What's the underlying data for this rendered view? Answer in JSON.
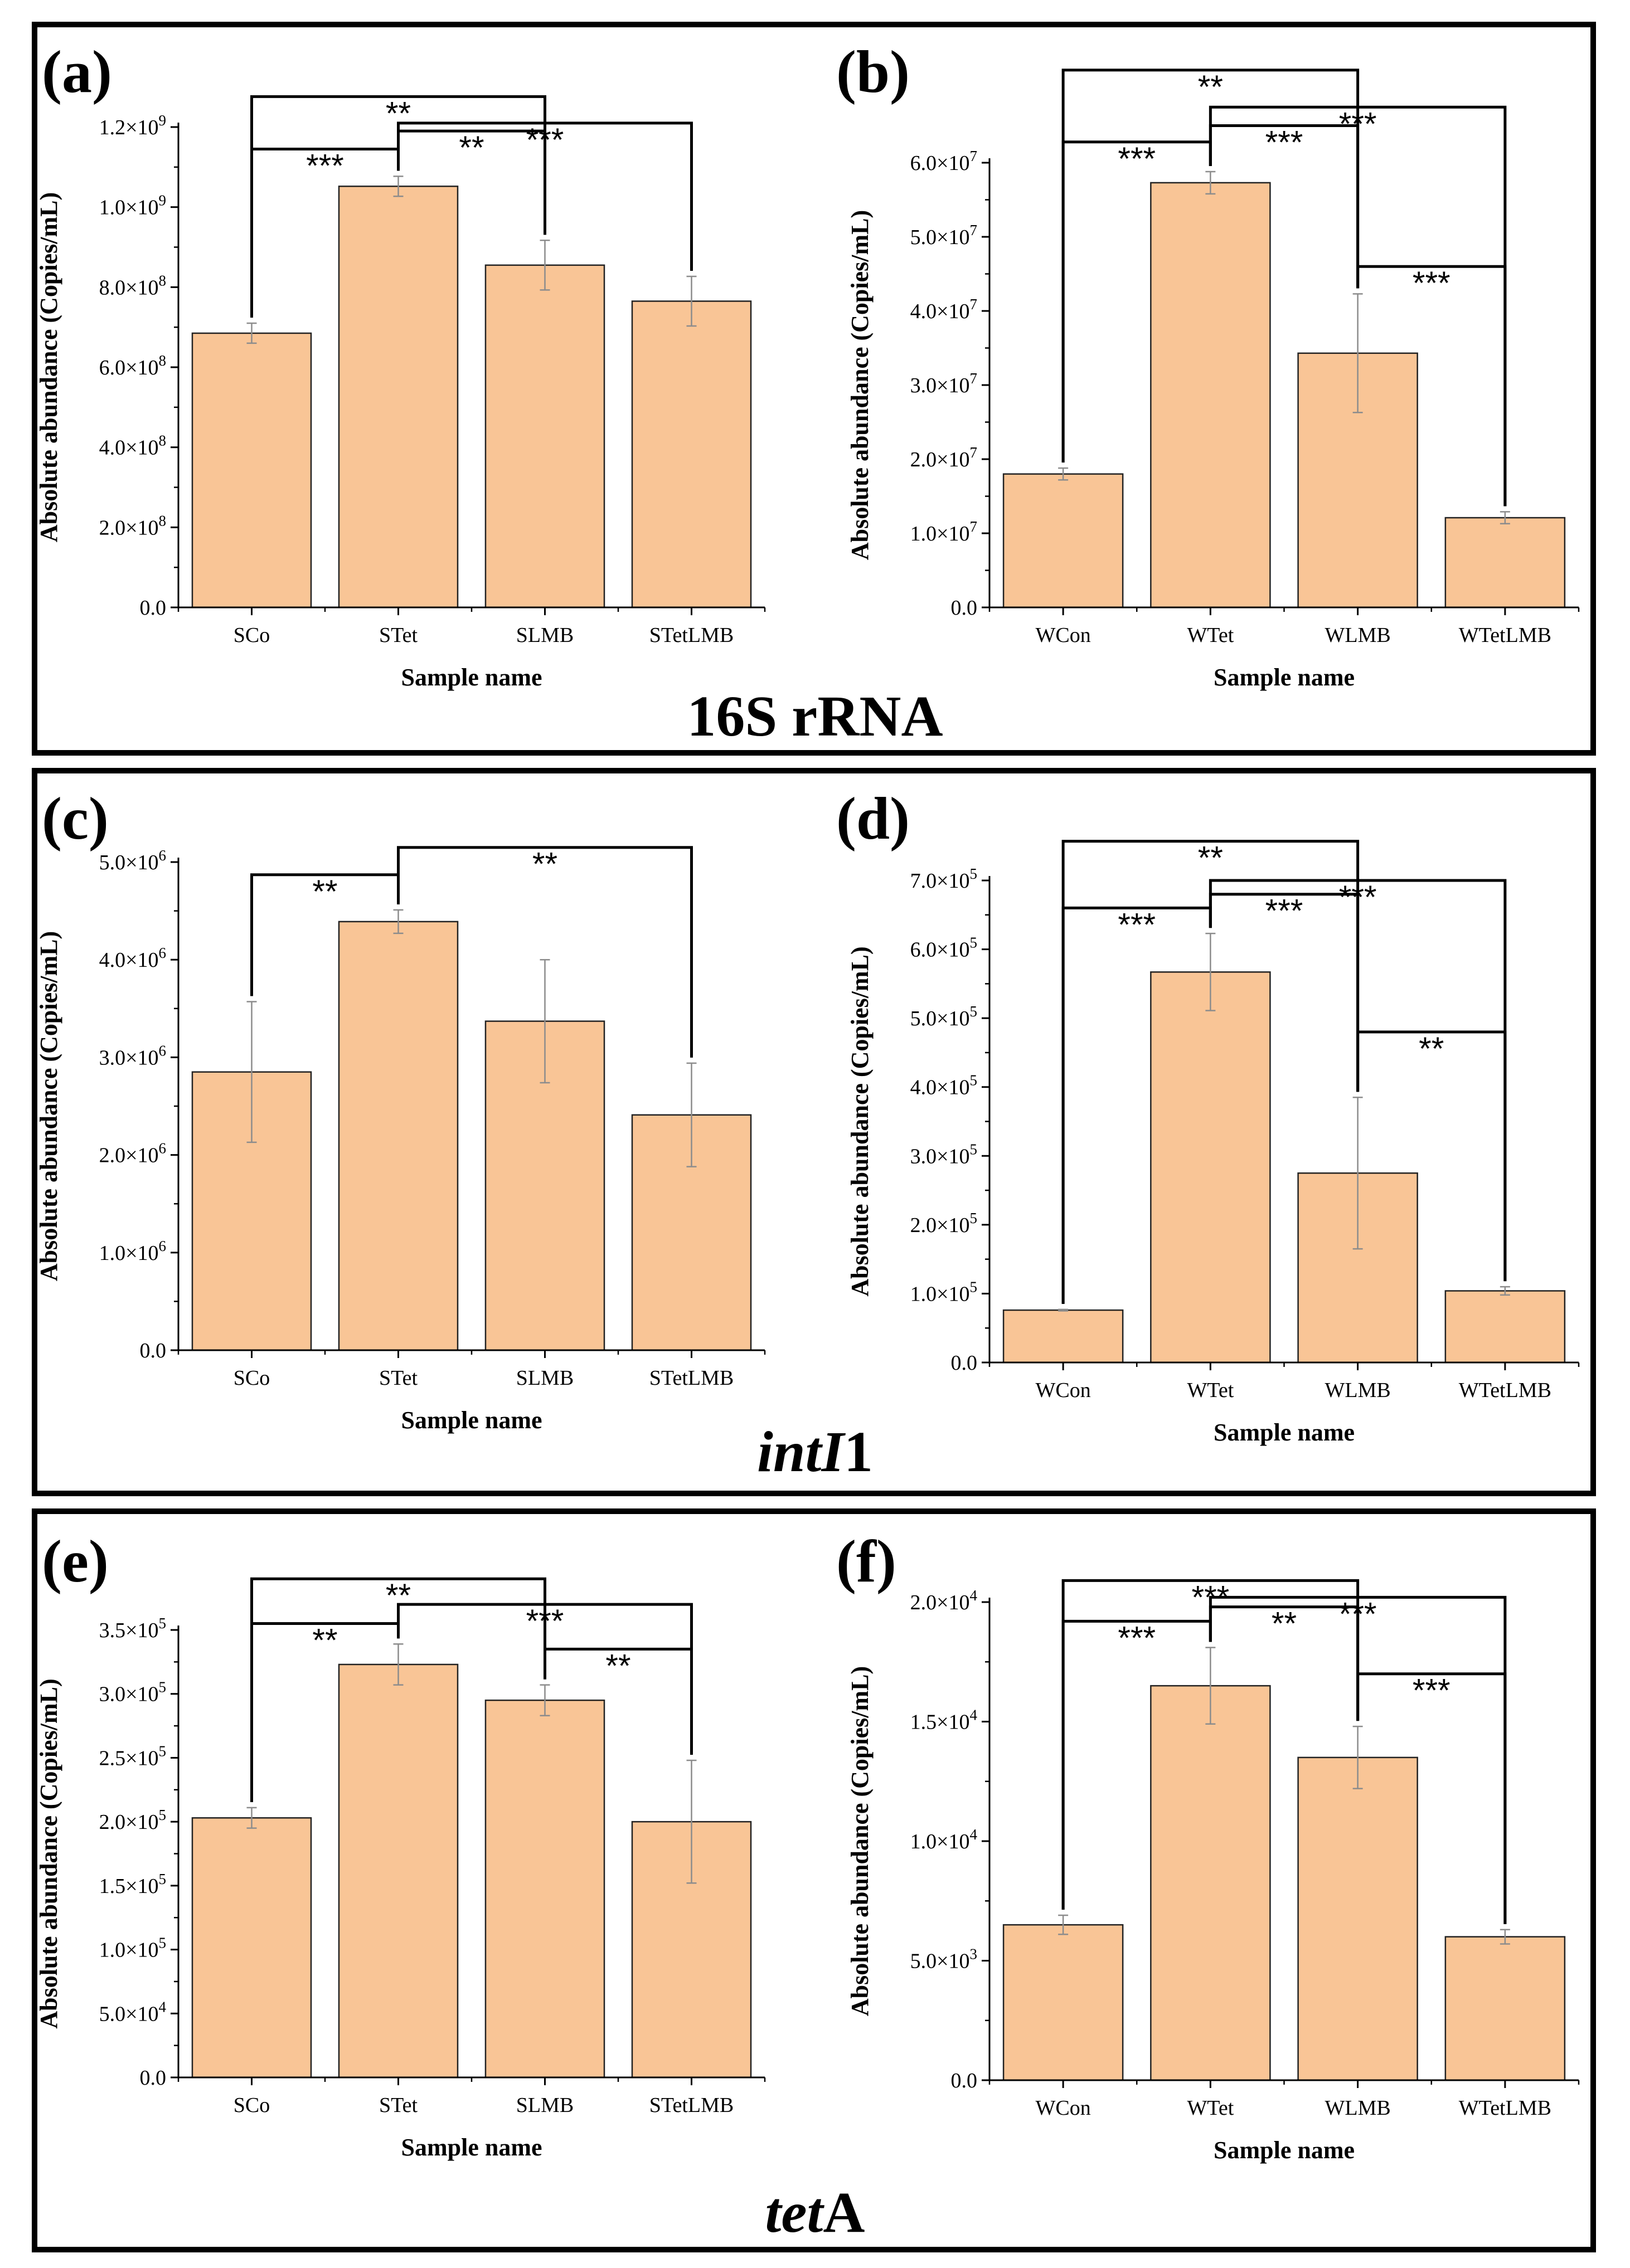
{
  "section_titles": [
    {
      "italic": "",
      "normal": "16S rRNA"
    },
    {
      "italic": "intI",
      "normal": "1"
    },
    {
      "italic": "tet",
      "normal": "A"
    }
  ],
  "chart_data": [
    {
      "type": "bar",
      "panel_label": "(a)",
      "categories": [
        "SCo",
        "STet",
        "SLMB",
        "STetLMB"
      ],
      "values": [
        685000000.0,
        1052000000.0,
        855000000.0,
        765000000.0
      ],
      "errors": [
        25000000.0,
        25000000.0,
        62000000.0,
        62000000.0
      ],
      "xlabel": "Sample name",
      "ylabel": "Absolute abundance (Copies/mL)",
      "ylim": [
        0,
        1200000000.0
      ],
      "exponent": 9,
      "yticks": [
        {
          "v": 0,
          "m": "0.0",
          "e": ""
        },
        {
          "v": 200000000.0,
          "m": "2.0×10",
          "e": "8"
        },
        {
          "v": 400000000.0,
          "m": "4.0×10",
          "e": "8"
        },
        {
          "v": 600000000.0,
          "m": "6.0×10",
          "e": "8"
        },
        {
          "v": 800000000.0,
          "m": "8.0×10",
          "e": "8"
        },
        {
          "v": 1000000000.0,
          "m": "1.0×10",
          "e": "9"
        },
        {
          "v": 1200000000.0,
          "m": "1.2×10",
          "e": "9"
        }
      ],
      "significance": [
        {
          "from": 0,
          "to": 2,
          "level": 1276000000.0,
          "label": "**"
        },
        {
          "from": 1,
          "to": 3,
          "level": 1210000000.0,
          "label": "***"
        },
        {
          "from": 1,
          "to": 2,
          "level": 1190000000.0,
          "label": "**"
        },
        {
          "from": 0,
          "to": 1,
          "level": 1145000000.0,
          "label": "***"
        }
      ]
    },
    {
      "type": "bar",
      "panel_label": "(b)",
      "categories": [
        "WCon",
        "WTet",
        "WLMB",
        "WTetLMB"
      ],
      "values": [
        18000000.0,
        57300000.0,
        34300000.0,
        12100000.0
      ],
      "errors": [
        800000.0,
        1500000.0,
        8000000.0,
        800000.0
      ],
      "xlabel": "Sample name",
      "ylabel": "Absolute abundance (Copies/mL)",
      "ylim": [
        0,
        60000000.0
      ],
      "exponent": 7,
      "yticks": [
        {
          "v": 0,
          "m": "0.0",
          "e": ""
        },
        {
          "v": 10000000.0,
          "m": "1.0×10",
          "e": "7"
        },
        {
          "v": 20000000.0,
          "m": "2.0×10",
          "e": "7"
        },
        {
          "v": 30000000.0,
          "m": "3.0×10",
          "e": "7"
        },
        {
          "v": 40000000.0,
          "m": "4.0×10",
          "e": "7"
        },
        {
          "v": 50000000.0,
          "m": "5.0×10",
          "e": "7"
        },
        {
          "v": 60000000.0,
          "m": "6.0×10",
          "e": "7"
        }
      ],
      "significance": [
        {
          "from": 0,
          "to": 2,
          "level": 72500000.0,
          "label": "**"
        },
        {
          "from": 1,
          "to": 3,
          "level": 67500000.0,
          "label": "***"
        },
        {
          "from": 1,
          "to": 2,
          "level": 65000000.0,
          "label": "***"
        },
        {
          "from": 0,
          "to": 1,
          "level": 62800000.0,
          "label": "***"
        },
        {
          "from": 2,
          "to": 3,
          "level": 46000000.0,
          "label": "***"
        }
      ]
    },
    {
      "type": "bar",
      "panel_label": "(c)",
      "categories": [
        "SCo",
        "STet",
        "SLMB",
        "STetLMB"
      ],
      "values": [
        2850000.0,
        4390000.0,
        3370000.0,
        2410000.0
      ],
      "errors": [
        720000.0,
        120000.0,
        630000.0,
        530000.0
      ],
      "xlabel": "Sample name",
      "ylabel": "Absolute abundance (Copies/mL)",
      "ylim": [
        0,
        5000000.0
      ],
      "exponent": 6,
      "yticks": [
        {
          "v": 0,
          "m": "0.0",
          "e": ""
        },
        {
          "v": 1000000.0,
          "m": "1.0×10",
          "e": "6"
        },
        {
          "v": 2000000.0,
          "m": "2.0×10",
          "e": "6"
        },
        {
          "v": 3000000.0,
          "m": "3.0×10",
          "e": "6"
        },
        {
          "v": 4000000.0,
          "m": "4.0×10",
          "e": "6"
        },
        {
          "v": 5000000.0,
          "m": "5.0×10",
          "e": "6"
        }
      ],
      "significance": [
        {
          "from": 1,
          "to": 3,
          "level": 5150000.0,
          "label": "**"
        },
        {
          "from": 0,
          "to": 1,
          "level": 4870000.0,
          "label": "**"
        }
      ]
    },
    {
      "type": "bar",
      "panel_label": "(d)",
      "categories": [
        "WCon",
        "WTet",
        "WLMB",
        "WTetLMB"
      ],
      "values": [
        76000.0,
        567000.0,
        275000.0,
        104000.0
      ],
      "errors": [
        1000.0,
        56000.0,
        110000.0,
        6000.0
      ],
      "xlabel": "Sample name",
      "ylabel": "Absolute abundance (Copies/mL)",
      "ylim": [
        0,
        700000.0
      ],
      "exponent": 5,
      "yticks": [
        {
          "v": 0,
          "m": "0.0",
          "e": ""
        },
        {
          "v": 100000.0,
          "m": "1.0×10",
          "e": "5"
        },
        {
          "v": 200000.0,
          "m": "2.0×10",
          "e": "5"
        },
        {
          "v": 300000.0,
          "m": "3.0×10",
          "e": "5"
        },
        {
          "v": 400000.0,
          "m": "4.0×10",
          "e": "5"
        },
        {
          "v": 500000.0,
          "m": "5.0×10",
          "e": "5"
        },
        {
          "v": 600000.0,
          "m": "6.0×10",
          "e": "5"
        },
        {
          "v": 700000.0,
          "m": "7.0×10",
          "e": "5"
        }
      ],
      "significance": [
        {
          "from": 0,
          "to": 2,
          "level": 757000.0,
          "label": "**"
        },
        {
          "from": 1,
          "to": 3,
          "level": 700000.0,
          "label": "***"
        },
        {
          "from": 1,
          "to": 2,
          "level": 680000.0,
          "label": "***"
        },
        {
          "from": 0,
          "to": 1,
          "level": 660000.0,
          "label": "***"
        },
        {
          "from": 2,
          "to": 3,
          "level": 480000.0,
          "label": "**"
        }
      ]
    },
    {
      "type": "bar",
      "panel_label": "(e)",
      "categories": [
        "SCo",
        "STet",
        "SLMB",
        "STetLMB"
      ],
      "values": [
        203000.0,
        323000.0,
        295000.0,
        200000.0
      ],
      "errors": [
        8000.0,
        16000.0,
        12000.0,
        48000.0
      ],
      "xlabel": "Sample name",
      "ylabel": "Absolute abundance (Copies/mL)",
      "ylim": [
        0,
        350000.0
      ],
      "exponent": 5,
      "yticks": [
        {
          "v": 0,
          "m": "0.0",
          "e": ""
        },
        {
          "v": 50000.0,
          "m": "5.0×10",
          "e": "4"
        },
        {
          "v": 100000.0,
          "m": "1.0×10",
          "e": "5"
        },
        {
          "v": 150000.0,
          "m": "1.5×10",
          "e": "5"
        },
        {
          "v": 200000.0,
          "m": "2.0×10",
          "e": "5"
        },
        {
          "v": 250000.0,
          "m": "2.5×10",
          "e": "5"
        },
        {
          "v": 300000.0,
          "m": "3.0×10",
          "e": "5"
        },
        {
          "v": 350000.0,
          "m": "3.5×10",
          "e": "5"
        }
      ],
      "significance": [
        {
          "from": 0,
          "to": 2,
          "level": 390000.0,
          "label": "**"
        },
        {
          "from": 1,
          "to": 3,
          "level": 370000.0,
          "label": "***"
        },
        {
          "from": 0,
          "to": 1,
          "level": 355000.0,
          "label": "**"
        },
        {
          "from": 2,
          "to": 3,
          "level": 335000.0,
          "label": "**"
        }
      ]
    },
    {
      "type": "bar",
      "panel_label": "(f)",
      "categories": [
        "WCon",
        "WTet",
        "WLMB",
        "WTetLMB"
      ],
      "values": [
        6500.0,
        16500.0,
        13500.0,
        6000.0
      ],
      "errors": [
        400.0,
        1600.0,
        1300.0,
        300.0
      ],
      "xlabel": "Sample name",
      "ylabel": "Absolute abundance (Copies/mL)",
      "ylim": [
        0,
        20000.0
      ],
      "exponent": 4,
      "yticks": [
        {
          "v": 0,
          "m": "0.0",
          "e": ""
        },
        {
          "v": 5000.0,
          "m": "5.0×10",
          "e": "3"
        },
        {
          "v": 10000.0,
          "m": "1.0×10",
          "e": "4"
        },
        {
          "v": 15000.0,
          "m": "1.5×10",
          "e": "4"
        },
        {
          "v": 20000.0,
          "m": "2.0×10",
          "e": "4"
        }
      ],
      "significance": [
        {
          "from": 0,
          "to": 2,
          "level": 20900.0,
          "label": "***"
        },
        {
          "from": 1,
          "to": 3,
          "level": 20200.0,
          "label": "***"
        },
        {
          "from": 1,
          "to": 2,
          "level": 19800.0,
          "label": "**"
        },
        {
          "from": 0,
          "to": 1,
          "level": 19200.0,
          "label": "***"
        },
        {
          "from": 2,
          "to": 3,
          "level": 17000.0,
          "label": "***"
        }
      ]
    }
  ],
  "colors": {
    "bar_fill": "#f9c596",
    "bar_stroke": "#222222",
    "error_bar": "#8c8c8c",
    "frame": "#000000"
  }
}
